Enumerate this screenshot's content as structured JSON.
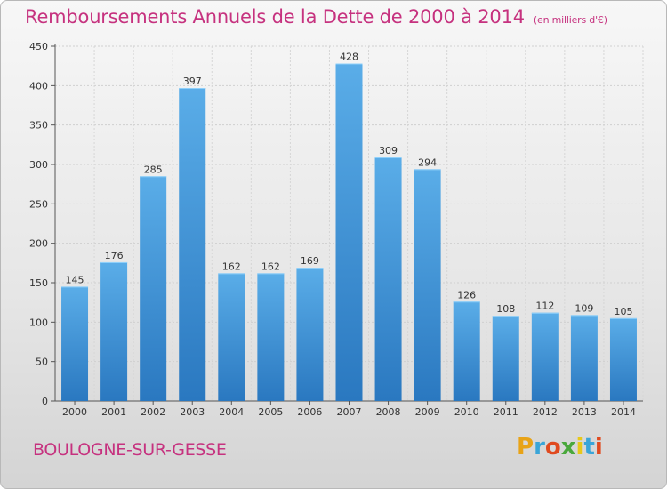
{
  "header": {
    "title": "Remboursements Annuels de la Dette de 2000 à 2014",
    "unit": "(en milliers d'€)"
  },
  "footer": {
    "city": "BOULOGNE-SUR-GESSE",
    "logo": "Proxiti"
  },
  "colors": {
    "title": "#c6327f",
    "bar_light": "#5aade8",
    "bar_dark": "#2a78c0"
  },
  "chart_data": {
    "type": "bar",
    "title": "Remboursements Annuels de la Dette de 2000 à 2014",
    "categories": [
      "2000",
      "2001",
      "2002",
      "2003",
      "2004",
      "2005",
      "2006",
      "2007",
      "2008",
      "2009",
      "2010",
      "2011",
      "2012",
      "2013",
      "2014"
    ],
    "values": [
      145,
      176,
      285,
      397,
      162,
      162,
      169,
      428,
      309,
      294,
      126,
      108,
      112,
      109,
      105
    ],
    "ylim": [
      0,
      450
    ],
    "yticks": [
      0,
      50,
      100,
      150,
      200,
      250,
      300,
      350,
      400,
      450
    ],
    "grid": true
  }
}
